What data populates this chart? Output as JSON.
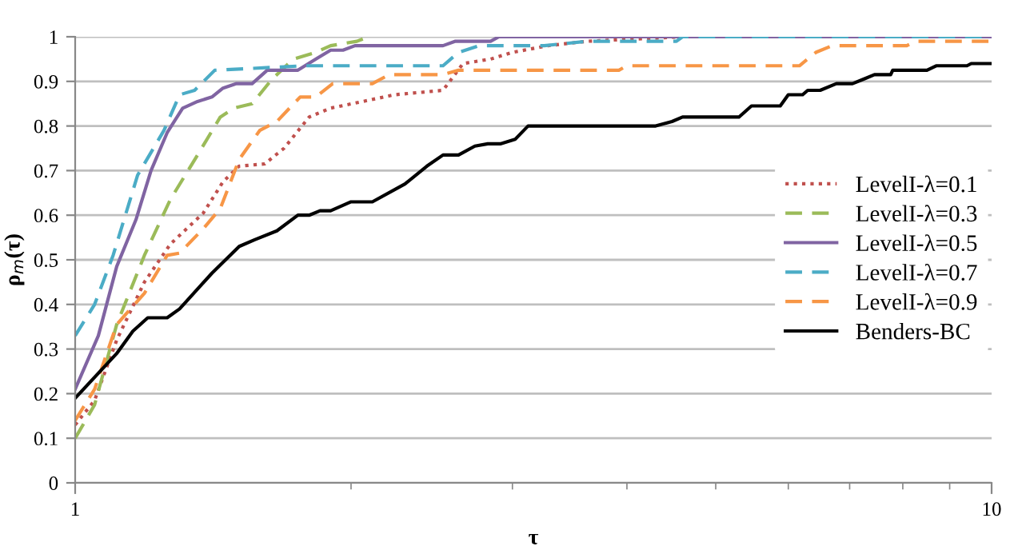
{
  "chart_data": {
    "type": "line",
    "xlabel": "τ",
    "ylabel": "ρ$_{m}$(τ)",
    "log": "x",
    "xlim": [
      1,
      10
    ],
    "xticks": [
      1,
      10
    ],
    "ylim": [
      0,
      1
    ],
    "yticks": [
      0,
      0.1,
      0.2,
      0.3,
      0.4,
      0.5,
      0.6,
      0.7,
      0.8,
      0.9,
      1
    ],
    "grid": "y",
    "legend": "right",
    "marker": "none",
    "series": [
      {
        "name": "LevelI-λ=0.1",
        "color": "#c0504d",
        "line_style": "dotted",
        "x": [
          1,
          1.05,
          1.11,
          1.19,
          1.27,
          1.38,
          1.45,
          1.51,
          1.61,
          1.69,
          1.8,
          1.9,
          2.06,
          2.23,
          2.52,
          2.65,
          2.84,
          3.0,
          3.28,
          3.62,
          4.6,
          10
        ],
        "values": [
          0.13,
          0.185,
          0.32,
          0.45,
          0.535,
          0.605,
          0.675,
          0.71,
          0.715,
          0.75,
          0.82,
          0.84,
          0.855,
          0.87,
          0.88,
          0.94,
          0.95,
          0.965,
          0.98,
          0.99,
          1.0,
          1.0
        ]
      },
      {
        "name": "LevelI-λ=0.3",
        "color": "#9bbb59",
        "line_style": "dashed",
        "x": [
          1,
          1.05,
          1.11,
          1.19,
          1.27,
          1.36,
          1.44,
          1.49,
          1.56,
          1.64,
          1.73,
          1.83,
          1.9,
          2.03,
          2.09
        ],
        "values": [
          0.1,
          0.175,
          0.355,
          0.51,
          0.635,
          0.735,
          0.82,
          0.84,
          0.85,
          0.905,
          0.95,
          0.965,
          0.98,
          0.99,
          1.0
        ]
      },
      {
        "name": "LevelI-λ=0.5",
        "color": "#8064a2",
        "line_style": "solid",
        "x": [
          1,
          1.06,
          1.11,
          1.165,
          1.21,
          1.26,
          1.31,
          1.36,
          1.41,
          1.45,
          1.5,
          1.56,
          1.62,
          1.75,
          1.83,
          1.9,
          1.96,
          2.02,
          2.52,
          2.6,
          2.84,
          2.9,
          10
        ],
        "values": [
          0.21,
          0.33,
          0.485,
          0.59,
          0.7,
          0.785,
          0.84,
          0.855,
          0.865,
          0.885,
          0.895,
          0.895,
          0.925,
          0.925,
          0.95,
          0.97,
          0.97,
          0.98,
          0.98,
          0.99,
          0.99,
          1.0,
          1.0
        ]
      },
      {
        "name": "LevelI-λ=0.7",
        "color": "#4bacc6",
        "line_style": "dashed",
        "x": [
          1,
          1.05,
          1.1,
          1.17,
          1.25,
          1.3,
          1.35,
          1.42,
          1.78,
          2.52,
          2.62,
          2.76,
          3.25,
          3.62,
          4.53,
          4.6,
          10
        ],
        "values": [
          0.33,
          0.4,
          0.51,
          0.69,
          0.79,
          0.87,
          0.88,
          0.925,
          0.935,
          0.935,
          0.965,
          0.98,
          0.98,
          0.99,
          0.99,
          1.0,
          1.0
        ]
      },
      {
        "name": "LevelI-λ=0.9",
        "color": "#f79646",
        "line_style": "dashed",
        "x": [
          1,
          1.05,
          1.11,
          1.19,
          1.26,
          1.3,
          1.38,
          1.44,
          1.51,
          1.59,
          1.66,
          1.76,
          1.83,
          1.91,
          2.11,
          2.2,
          2.52,
          2.62,
          3.92,
          4.0,
          6.17,
          6.43,
          6.7,
          8.08,
          8.27,
          10
        ],
        "values": [
          0.14,
          0.21,
          0.355,
          0.425,
          0.51,
          0.515,
          0.57,
          0.615,
          0.725,
          0.79,
          0.81,
          0.865,
          0.865,
          0.895,
          0.895,
          0.915,
          0.915,
          0.925,
          0.925,
          0.935,
          0.935,
          0.965,
          0.98,
          0.98,
          0.99,
          0.99
        ]
      },
      {
        "name": "Benders-BC",
        "color": "#000000",
        "line_style": "solid",
        "x": [
          1,
          1.11,
          1.156,
          1.2,
          1.26,
          1.3,
          1.41,
          1.51,
          1.57,
          1.66,
          1.75,
          1.8,
          1.85,
          1.9,
          2.0,
          2.11,
          2.29,
          2.42,
          2.52,
          2.62,
          2.73,
          2.82,
          2.91,
          3.02,
          3.12,
          4.3,
          4.48,
          4.6,
          5.3,
          5.47,
          5.88,
          6.0,
          6.22,
          6.3,
          6.5,
          6.77,
          7.05,
          7.25,
          7.45,
          7.76,
          7.8,
          8.5,
          8.7,
          9.4,
          9.5,
          10
        ],
        "values": [
          0.19,
          0.29,
          0.34,
          0.37,
          0.37,
          0.39,
          0.47,
          0.53,
          0.545,
          0.565,
          0.6,
          0.6,
          0.61,
          0.61,
          0.63,
          0.63,
          0.67,
          0.71,
          0.735,
          0.735,
          0.755,
          0.76,
          0.76,
          0.77,
          0.8,
          0.8,
          0.81,
          0.82,
          0.82,
          0.845,
          0.845,
          0.87,
          0.87,
          0.88,
          0.88,
          0.895,
          0.895,
          0.905,
          0.915,
          0.915,
          0.925,
          0.925,
          0.935,
          0.935,
          0.94,
          0.94
        ]
      }
    ]
  }
}
